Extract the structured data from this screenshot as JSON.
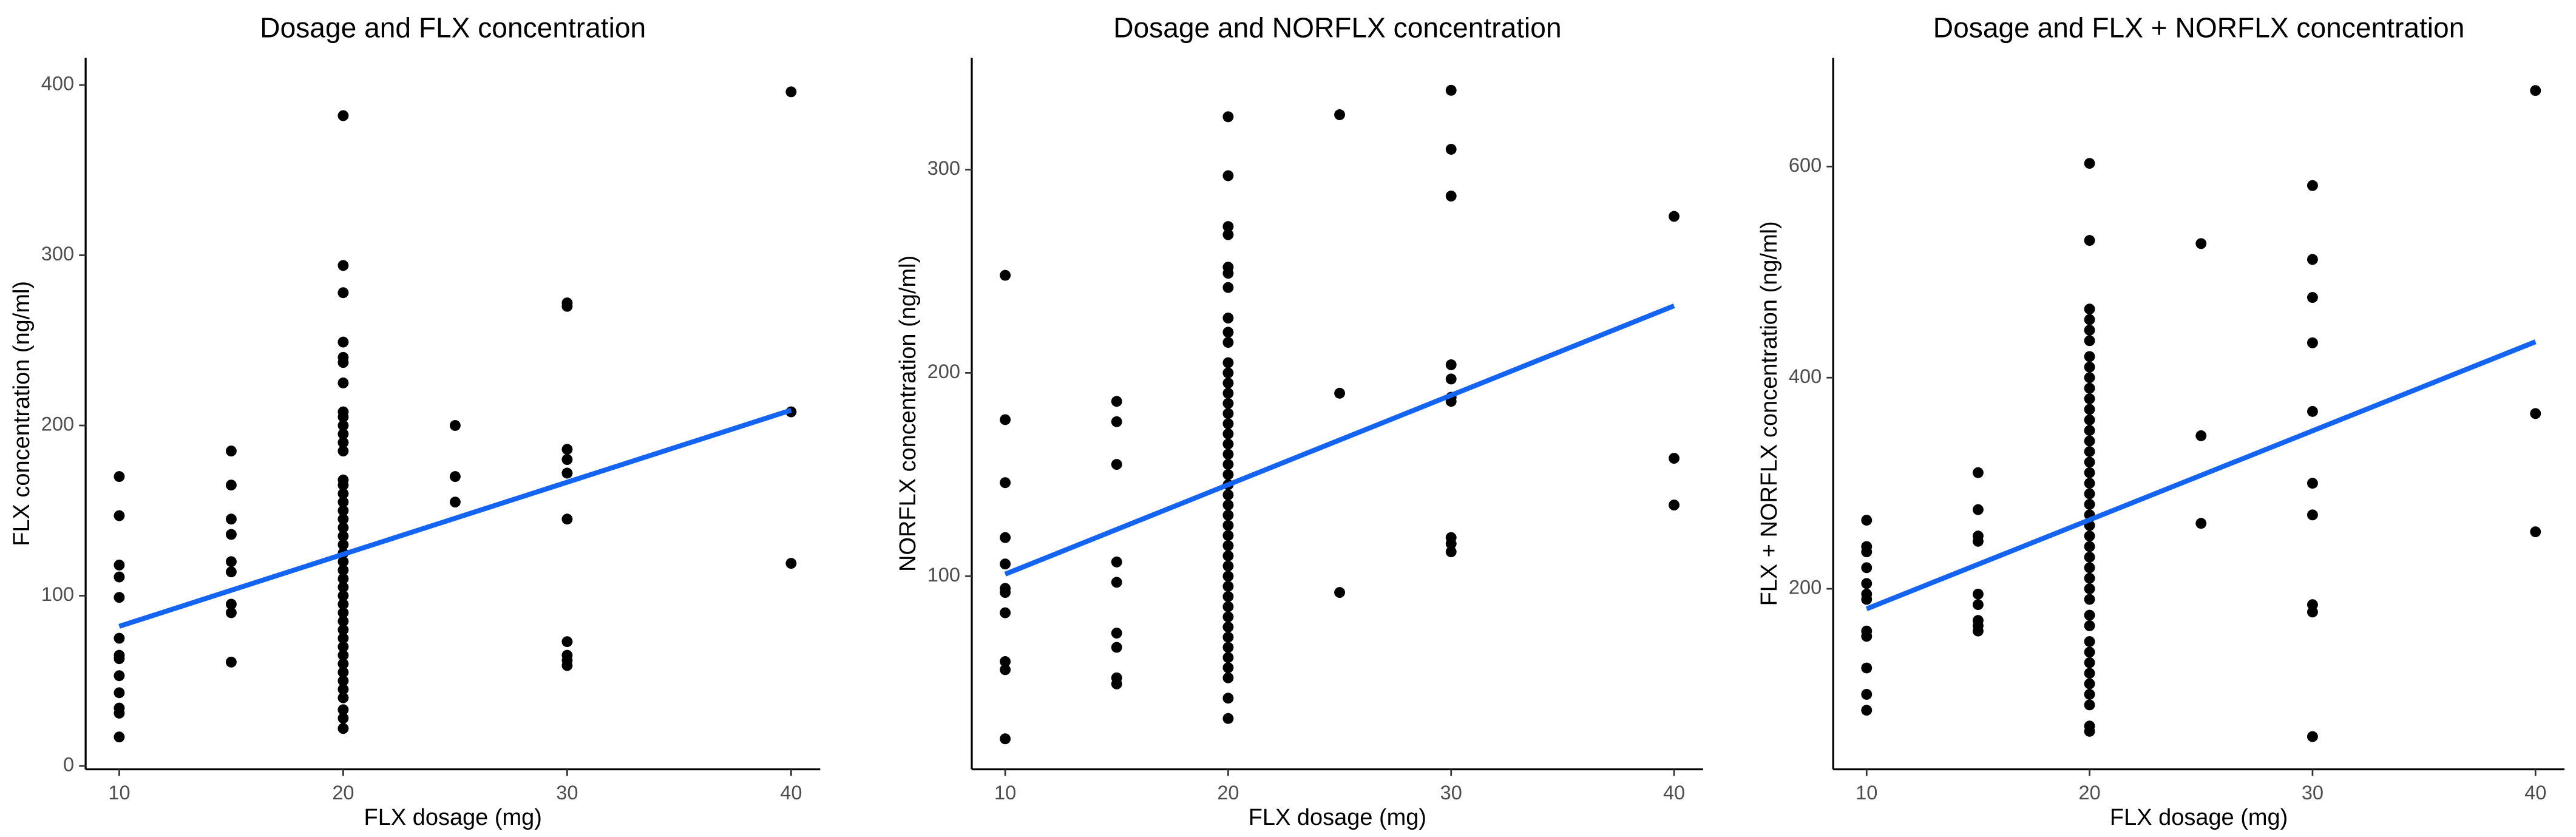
{
  "chart_data": [
    {
      "type": "scatter",
      "title": "Dosage and FLX concentration",
      "x_label": "FLX dosage (mg)",
      "y_label": "FLX concentration (ng/ml)",
      "color": "#000000",
      "x": [
        10,
        10,
        10,
        10,
        10,
        10,
        10,
        10,
        10,
        10,
        10,
        10,
        10,
        15,
        15,
        15,
        15,
        15,
        15,
        15,
        15,
        15,
        20,
        20,
        20,
        20,
        20,
        20,
        20,
        20,
        20,
        20,
        20,
        20,
        20,
        20,
        20,
        20,
        20,
        20,
        20,
        20,
        20,
        20,
        20,
        20,
        20,
        20,
        20,
        20,
        20,
        20,
        20,
        20,
        20,
        20,
        20,
        20,
        20,
        20,
        20,
        20,
        20,
        20,
        20,
        25,
        25,
        25,
        30,
        30,
        30,
        30,
        30,
        30,
        30,
        30,
        30,
        30,
        40,
        40,
        40
      ],
      "values": [
        170,
        147,
        118,
        111,
        99,
        75,
        65,
        63,
        53,
        43,
        34,
        31,
        17,
        185,
        165,
        145,
        136,
        120,
        114,
        95,
        90,
        61,
        382,
        294,
        278,
        249,
        240,
        237,
        225,
        208,
        205,
        200,
        195,
        190,
        185,
        168,
        165,
        160,
        155,
        150,
        145,
        140,
        135,
        130,
        125,
        120,
        115,
        110,
        105,
        100,
        95,
        90,
        85,
        80,
        75,
        70,
        65,
        60,
        55,
        50,
        45,
        40,
        33,
        28,
        22,
        200,
        170,
        155,
        272,
        270,
        186,
        180,
        172,
        145,
        73,
        65,
        62,
        59,
        396,
        208,
        119
      ],
      "trend_line": {
        "x": [
          10,
          40
        ],
        "values": [
          82,
          209
        ],
        "color": "#1464f4"
      },
      "xlim": [
        8.5,
        41.3
      ],
      "ylim": [
        -2,
        416
      ],
      "xticks": [
        10,
        20,
        30,
        40
      ],
      "yticks": [
        0,
        100,
        200,
        300,
        400
      ]
    },
    {
      "type": "scatter",
      "title": "Dosage and NORFLX concentration",
      "x_label": "FLX dosage (mg)",
      "y_label": "NORFLX concentration (ng/ml)",
      "color": "#000000",
      "x": [
        10,
        10,
        10,
        10,
        10,
        10,
        10,
        10,
        10,
        10,
        10,
        15,
        15,
        15,
        15,
        15,
        15,
        15,
        15,
        15,
        20,
        20,
        20,
        20,
        20,
        20,
        20,
        20,
        20,
        20,
        20,
        20,
        20,
        20,
        20,
        20,
        20,
        20,
        20,
        20,
        20,
        20,
        20,
        20,
        20,
        20,
        20,
        20,
        20,
        20,
        20,
        20,
        20,
        20,
        20,
        20,
        20,
        20,
        20,
        20,
        20,
        20,
        20,
        20,
        25,
        25,
        25,
        30,
        30,
        30,
        30,
        30,
        30,
        30,
        30,
        30,
        30,
        40,
        40,
        40
      ],
      "values": [
        248,
        177,
        146,
        119,
        106,
        94,
        92,
        82,
        58,
        54,
        20,
        186,
        176,
        155,
        107,
        97,
        72,
        65,
        50,
        47,
        326,
        297,
        272,
        268,
        252,
        249,
        242,
        227,
        220,
        215,
        205,
        200,
        195,
        190,
        185,
        180,
        175,
        170,
        165,
        160,
        155,
        150,
        145,
        140,
        135,
        130,
        125,
        120,
        115,
        110,
        105,
        100,
        95,
        90,
        85,
        80,
        75,
        70,
        65,
        60,
        55,
        50,
        40,
        30,
        327,
        190,
        92,
        339,
        310,
        287,
        204,
        197,
        188,
        186,
        119,
        116,
        112,
        277,
        158,
        135
      ],
      "trend_line": {
        "x": [
          10,
          40
        ],
        "values": [
          101,
          233
        ],
        "color": "#1464f4"
      },
      "xlim": [
        8.5,
        41.3
      ],
      "ylim": [
        5,
        355
      ],
      "xticks": [
        10,
        20,
        30,
        40
      ],
      "yticks": [
        100,
        200,
        300
      ]
    },
    {
      "type": "scatter",
      "title": "Dosage and FLX + NORFLX concentration",
      "x_label": "FLX dosage (mg)",
      "y_label": "FLX + NORFLX concentration (ng/ml)",
      "color": "#000000",
      "x": [
        10,
        10,
        10,
        10,
        10,
        10,
        10,
        10,
        10,
        10,
        10,
        10,
        15,
        15,
        15,
        15,
        15,
        15,
        15,
        15,
        15,
        20,
        20,
        20,
        20,
        20,
        20,
        20,
        20,
        20,
        20,
        20,
        20,
        20,
        20,
        20,
        20,
        20,
        20,
        20,
        20,
        20,
        20,
        20,
        20,
        20,
        20,
        20,
        20,
        20,
        20,
        20,
        20,
        20,
        20,
        20,
        20,
        20,
        20,
        20,
        20,
        20,
        25,
        25,
        25,
        30,
        30,
        30,
        30,
        30,
        30,
        30,
        30,
        30,
        30,
        40,
        40,
        40
      ],
      "values": [
        265,
        240,
        235,
        220,
        205,
        195,
        190,
        160,
        155,
        125,
        100,
        85,
        310,
        275,
        250,
        245,
        195,
        185,
        170,
        165,
        160,
        603,
        530,
        465,
        455,
        445,
        435,
        420,
        410,
        400,
        390,
        380,
        370,
        360,
        350,
        340,
        330,
        320,
        310,
        300,
        290,
        280,
        270,
        260,
        250,
        240,
        230,
        220,
        210,
        200,
        190,
        175,
        165,
        150,
        140,
        130,
        120,
        110,
        100,
        90,
        70,
        65,
        527,
        345,
        262,
        582,
        512,
        476,
        433,
        368,
        300,
        270,
        185,
        178,
        60,
        672,
        366,
        254
      ],
      "trend_line": {
        "x": [
          10,
          40
        ],
        "values": [
          181,
          434
        ],
        "color": "#1464f4"
      },
      "xlim": [
        8.5,
        41.3
      ],
      "ylim": [
        29,
        703
      ],
      "xticks": [
        10,
        20,
        30,
        40
      ],
      "yticks": [
        200,
        400,
        600
      ]
    }
  ]
}
